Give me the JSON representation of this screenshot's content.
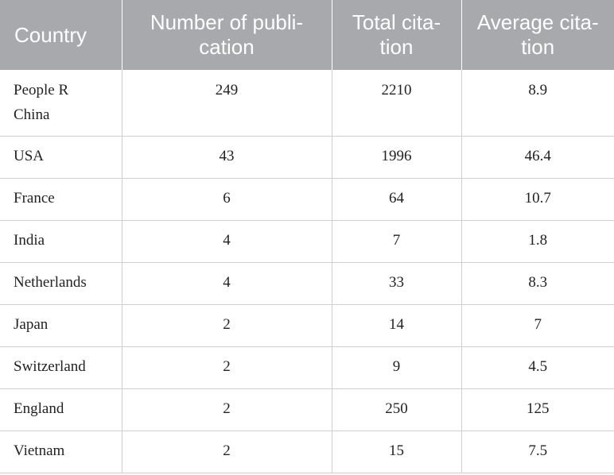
{
  "table": {
    "headers": [
      {
        "lines": [
          "Country"
        ]
      },
      {
        "lines": [
          "Number of publi-",
          "cation"
        ]
      },
      {
        "lines": [
          "Total cita-",
          "tion"
        ]
      },
      {
        "lines": [
          "Average cita-",
          "tion"
        ]
      }
    ],
    "rows": [
      {
        "country_lines": [
          "People R",
          "China"
        ],
        "publications": "249",
        "total_citation": "2210",
        "average_citation": "8.9"
      },
      {
        "country_lines": [
          "USA"
        ],
        "publications": "43",
        "total_citation": "1996",
        "average_citation": "46.4"
      },
      {
        "country_lines": [
          "France"
        ],
        "publications": "6",
        "total_citation": "64",
        "average_citation": "10.7"
      },
      {
        "country_lines": [
          "India"
        ],
        "publications": "4",
        "total_citation": "7",
        "average_citation": "1.8"
      },
      {
        "country_lines": [
          "Netherlands"
        ],
        "publications": "4",
        "total_citation": "33",
        "average_citation": "8.3"
      },
      {
        "country_lines": [
          "Japan"
        ],
        "publications": "2",
        "total_citation": "14",
        "average_citation": "7"
      },
      {
        "country_lines": [
          "Switzerland"
        ],
        "publications": "2",
        "total_citation": "9",
        "average_citation": "4.5"
      },
      {
        "country_lines": [
          "England"
        ],
        "publications": "2",
        "total_citation": "250",
        "average_citation": "125"
      },
      {
        "country_lines": [
          "Vietnam"
        ],
        "publications": "2",
        "total_citation": "15",
        "average_citation": "7.5"
      }
    ]
  }
}
